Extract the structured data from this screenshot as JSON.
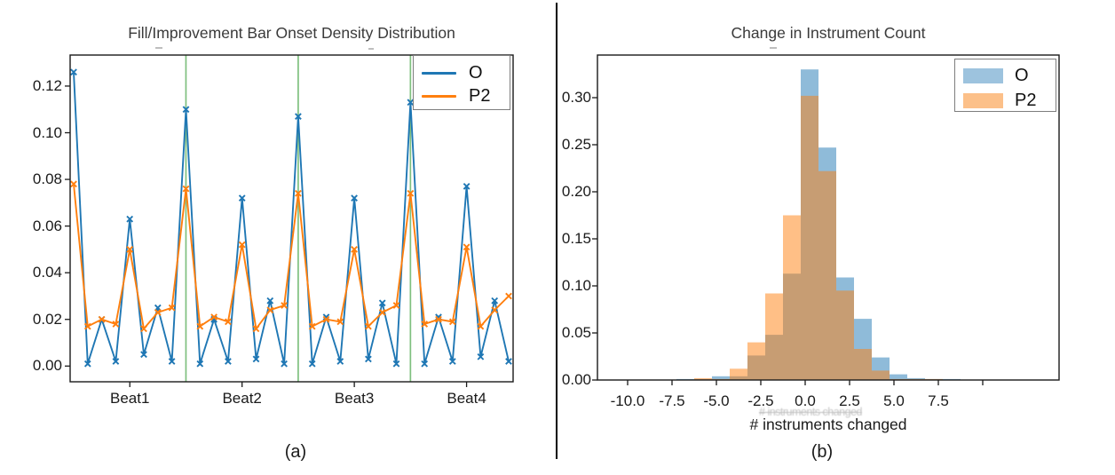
{
  "figure": {
    "panel_a_caption": "(a)",
    "panel_b_caption": "(b)"
  },
  "chart_data": [
    {
      "type": "line",
      "panel": "a",
      "title": "Fill/Improvement Bar Onset Density Distribution",
      "x_tick_labels": [
        "Beat1",
        "Beat2",
        "Beat3",
        "Beat4"
      ],
      "points_per_beat": 8,
      "n_points": 32,
      "beat_boundary_indices": [
        8,
        16,
        24
      ],
      "vline_color": "#7fc07f",
      "grid": false,
      "legend_position": "upper right",
      "y_ticks": [
        0.0,
        0.02,
        0.04,
        0.06,
        0.08,
        0.1,
        0.12
      ],
      "y_tick_labels": [
        "0.00",
        "0.02",
        "0.04",
        "0.06",
        "0.08",
        "0.10",
        "0.12"
      ],
      "ylim": [
        -0.006,
        0.1333
      ],
      "series": [
        {
          "name": "O",
          "color": "#1f77b4",
          "marker": "x",
          "values": [
            0.126,
            0.001,
            0.02,
            0.002,
            0.063,
            0.005,
            0.025,
            0.002,
            0.11,
            0.001,
            0.02,
            0.002,
            0.072,
            0.003,
            0.028,
            0.001,
            0.107,
            0.001,
            0.021,
            0.002,
            0.072,
            0.003,
            0.027,
            0.001,
            0.113,
            0.001,
            0.021,
            0.002,
            0.077,
            0.004,
            0.028,
            0.002
          ]
        },
        {
          "name": "P2",
          "color": "#ff7f0e",
          "marker": "x",
          "values": [
            0.078,
            0.017,
            0.02,
            0.018,
            0.05,
            0.016,
            0.023,
            0.025,
            0.076,
            0.017,
            0.021,
            0.019,
            0.052,
            0.016,
            0.024,
            0.026,
            0.074,
            0.017,
            0.02,
            0.019,
            0.05,
            0.017,
            0.023,
            0.026,
            0.074,
            0.018,
            0.02,
            0.019,
            0.051,
            0.017,
            0.024,
            0.03
          ]
        }
      ]
    },
    {
      "type": "histogram",
      "panel": "b",
      "title": "Change in Instrument Count",
      "xlabel": "# instruments changed",
      "ghost_xlabel": "# instruments changed",
      "bin_centers": [
        -7,
        -6,
        -5,
        -4,
        -3,
        -2,
        -1,
        0,
        1,
        2,
        3,
        4,
        5,
        6,
        7,
        8
      ],
      "bin_width": 1,
      "bin_left_offset": -0.25,
      "x_ticks": [
        -10,
        -7.5,
        -5,
        -2.5,
        0,
        2.5,
        5,
        7.5,
        10
      ],
      "x_tick_labels": [
        "-10.0",
        "-7.5",
        "-5.0",
        "-2.5",
        "0.0",
        "2.5",
        "5.0",
        "7.5",
        ""
      ],
      "y_ticks": [
        0,
        0.05,
        0.1,
        0.15,
        0.2,
        0.25,
        0.3
      ],
      "y_tick_labels": [
        "0.00",
        "0.05",
        "0.10",
        "0.15",
        "0.20",
        "0.25",
        "0.30"
      ],
      "xlim": [
        -11.7,
        14.3
      ],
      "ylim": [
        0,
        0.345
      ],
      "legend_position": "upper right",
      "series": [
        {
          "name": "O",
          "fill": "#8fbbd9",
          "swatch": "#9dc3de",
          "values": [
            0.001,
            0.001,
            0.004,
            0.004,
            0.026,
            0.048,
            0.113,
            0.33,
            0.247,
            0.109,
            0.065,
            0.024,
            0.006,
            0.002,
            0.001,
            0.001
          ]
        },
        {
          "name": "P2",
          "fill": "rgba(255,127,14,0.5)",
          "swatch": "#fcc089",
          "values": [
            0.0,
            0.002,
            0.001,
            0.012,
            0.04,
            0.092,
            0.175,
            0.302,
            0.222,
            0.095,
            0.033,
            0.01,
            0.001,
            0.001,
            0.001,
            0.0
          ]
        }
      ]
    }
  ]
}
